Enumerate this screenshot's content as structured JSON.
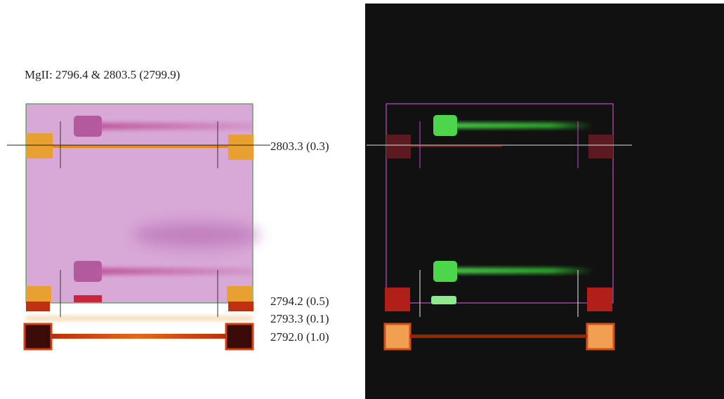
{
  "title": "MgII:  2796.4 & 2803.5 (2799.9)",
  "line_labels": [
    "2803.3 (0.3)",
    "2794.2 (0.5)",
    "2793.3 (0.1)",
    "2792.0 (1.0)"
  ]
}
